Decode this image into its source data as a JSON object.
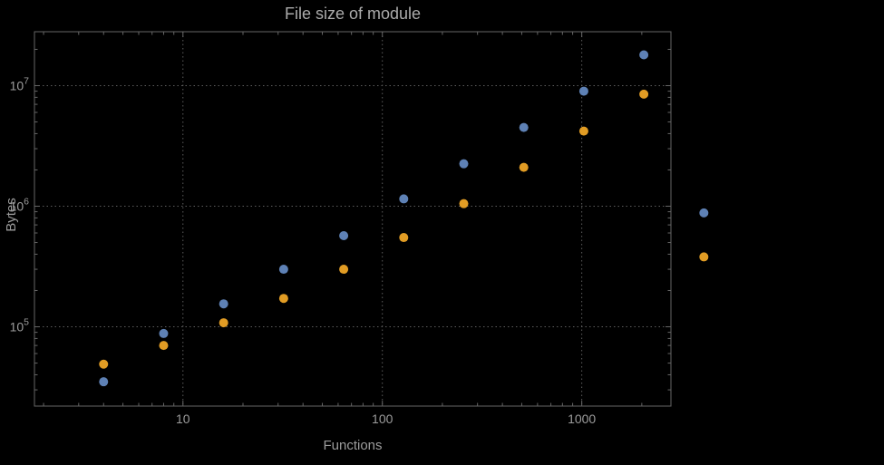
{
  "chart_data": {
    "type": "scatter",
    "title": "File size of module",
    "xlabel": "Functions",
    "ylabel": "Bytes",
    "x_scale": "log",
    "y_scale": "log",
    "xlim": [
      1.8,
      2800
    ],
    "ylim": [
      22000,
      28000000
    ],
    "grid": "dotted",
    "legend": "none",
    "x_major_ticks": [
      10,
      100,
      1000
    ],
    "x_tick_labels": [
      "10",
      "100",
      "1000"
    ],
    "y_major_ticks": [
      100000,
      1000000,
      10000000
    ],
    "y_tick_base": "10",
    "y_tick_exponents": [
      5,
      6,
      7
    ],
    "colors": {
      "background": "#000000",
      "frame": "#666666",
      "grid": "#5c5c5c",
      "text": "#9c9c9c",
      "series1": "#5e81b5",
      "series2": "#e19c24"
    },
    "x": [
      4,
      8,
      16,
      32,
      64,
      128,
      256,
      512,
      1024,
      2048,
      4096
    ],
    "series": [
      {
        "name": "series-1-blue",
        "color": "#5e81b5",
        "values": [
          35000,
          88000,
          155000,
          300000,
          570000,
          1150000,
          2250000,
          4500000,
          9000000,
          18000000,
          880000
        ]
      },
      {
        "name": "series-2-orange",
        "color": "#e19c24",
        "values": [
          49000,
          70000,
          108000,
          172000,
          300000,
          550000,
          1050000,
          2100000,
          4200000,
          8500000,
          380000
        ]
      }
    ]
  }
}
